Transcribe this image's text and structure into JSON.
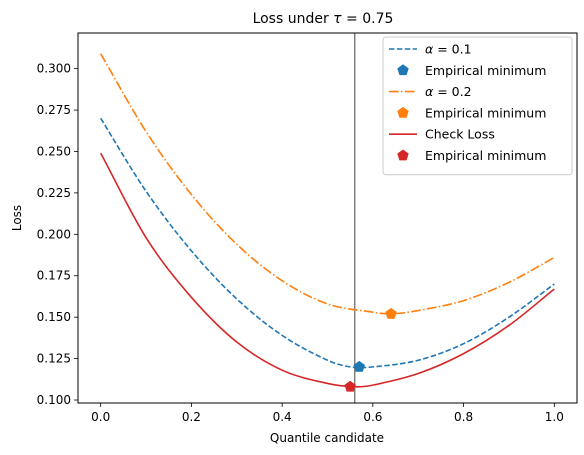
{
  "chart_data": {
    "type": "line",
    "title_prefix": "Loss under ",
    "title_symbol": "τ",
    "title_suffix": " = 0.75",
    "xlabel": "Quantile candidate",
    "ylabel": "Loss",
    "xlim": [
      -0.05,
      1.05
    ],
    "ylim": [
      0.0982,
      0.3215
    ],
    "xticks": [
      0.0,
      0.2,
      0.4,
      0.6,
      0.8,
      1.0
    ],
    "xtick_labels": [
      "0.0",
      "0.2",
      "0.4",
      "0.6",
      "0.8",
      "1.0"
    ],
    "yticks": [
      0.1,
      0.125,
      0.15,
      0.175,
      0.2,
      0.225,
      0.25,
      0.275,
      0.3
    ],
    "ytick_labels": [
      "0.100",
      "0.125",
      "0.150",
      "0.175",
      "0.200",
      "0.225",
      "0.250",
      "0.275",
      "0.300"
    ],
    "grid": false,
    "legend_position": "top-right",
    "vertical_line": {
      "x": 0.56,
      "color": "#808080"
    },
    "series": [
      {
        "name": "α = 0.1",
        "symbol": "α",
        "value_text": " = 0.1",
        "color": "#1f77b4",
        "style": "dashed",
        "x": [
          0.0,
          0.1,
          0.2,
          0.3,
          0.4,
          0.5,
          0.55,
          0.6,
          0.7,
          0.8,
          0.9,
          1.0
        ],
        "y": [
          0.27,
          0.226,
          0.19,
          0.161,
          0.139,
          0.124,
          0.12,
          0.12,
          0.124,
          0.134,
          0.15,
          0.17
        ]
      },
      {
        "name": "Empirical minimum",
        "color": "#1f77b4",
        "style": "marker",
        "marker": "pentagon",
        "x": [
          0.57
        ],
        "y": [
          0.12
        ]
      },
      {
        "name": "α = 0.2",
        "symbol": "α",
        "value_text": " = 0.2",
        "color": "#ff7f0e",
        "style": "dashdot",
        "x": [
          0.0,
          0.1,
          0.2,
          0.3,
          0.4,
          0.5,
          0.6,
          0.64,
          0.7,
          0.8,
          0.9,
          1.0
        ],
        "y": [
          0.309,
          0.262,
          0.224,
          0.194,
          0.172,
          0.158,
          0.153,
          0.152,
          0.154,
          0.16,
          0.171,
          0.186
        ]
      },
      {
        "name": "Empirical minimum",
        "color": "#ff7f0e",
        "style": "marker",
        "marker": "pentagon",
        "x": [
          0.64
        ],
        "y": [
          0.152
        ]
      },
      {
        "name": "Check Loss",
        "color": "#d62728",
        "style": "solid",
        "x": [
          0.0,
          0.1,
          0.2,
          0.3,
          0.4,
          0.5,
          0.56,
          0.6,
          0.7,
          0.8,
          0.9,
          1.0
        ],
        "y": [
          0.249,
          0.198,
          0.162,
          0.135,
          0.118,
          0.11,
          0.108,
          0.109,
          0.116,
          0.128,
          0.145,
          0.167
        ]
      },
      {
        "name": "Empirical minimum",
        "color": "#d62728",
        "style": "marker",
        "marker": "pentagon",
        "x": [
          0.55
        ],
        "y": [
          0.108
        ]
      }
    ]
  }
}
